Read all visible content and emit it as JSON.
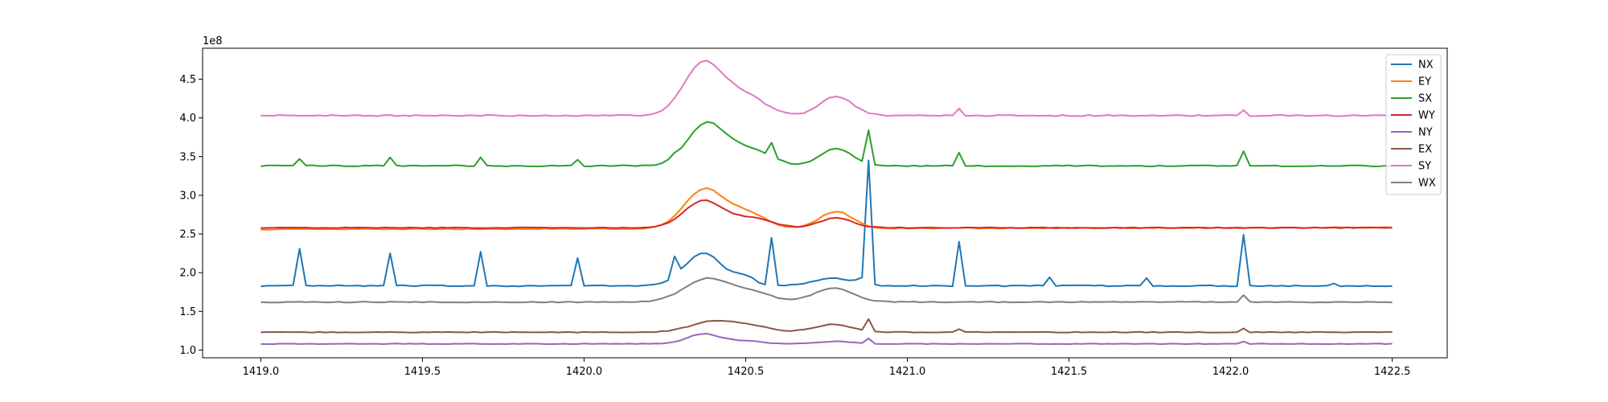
{
  "chart_data": {
    "type": "line",
    "title": "",
    "xlabel": "",
    "ylabel": "",
    "xlim": [
      1418.82,
      1422.67
    ],
    "ylim": [
      0.9,
      4.9
    ],
    "y_offset_text": "1e8",
    "x_ticks": [
      {
        "value": 1419.0,
        "label": "1419.0"
      },
      {
        "value": 1419.5,
        "label": "1419.5"
      },
      {
        "value": 1420.0,
        "label": "1420.0"
      },
      {
        "value": 1420.5,
        "label": "1420.5"
      },
      {
        "value": 1421.0,
        "label": "1421.0"
      },
      {
        "value": 1421.5,
        "label": "1421.5"
      },
      {
        "value": 1422.0,
        "label": "1422.0"
      },
      {
        "value": 1422.5,
        "label": "1422.5"
      }
    ],
    "y_ticks": [
      {
        "value": 1.0,
        "label": "1.0"
      },
      {
        "value": 1.5,
        "label": "1.5"
      },
      {
        "value": 2.0,
        "label": "2.0"
      },
      {
        "value": 2.5,
        "label": "2.5"
      },
      {
        "value": 3.0,
        "label": "3.0"
      },
      {
        "value": 3.5,
        "label": "3.5"
      },
      {
        "value": 4.0,
        "label": "4.0"
      },
      {
        "value": 4.5,
        "label": "4.5"
      }
    ],
    "grid": false,
    "legend_position": "top-right",
    "x_range": [
      1419.0,
      1422.5
    ],
    "x_step": 0.02,
    "series": [
      {
        "name": "NX",
        "color": "#1f77b4",
        "base": 1.83,
        "noise": 0.008,
        "features": [
          {
            "c": 1420.37,
            "a": 0.42,
            "w": 0.06
          },
          {
            "c": 1420.5,
            "a": 0.1,
            "w": 0.03
          },
          {
            "c": 1420.77,
            "a": 0.1,
            "w": 0.06
          },
          {
            "c": 1420.86,
            "a": 0.08,
            "w": 0.015
          }
        ],
        "spikes": [
          {
            "x": 1419.12,
            "h": 2.31
          },
          {
            "x": 1419.4,
            "h": 2.25
          },
          {
            "x": 1419.68,
            "h": 2.27
          },
          {
            "x": 1419.98,
            "h": 2.19
          },
          {
            "x": 1420.28,
            "h": 2.21
          },
          {
            "x": 1420.58,
            "h": 2.45
          },
          {
            "x": 1420.88,
            "h": 3.45
          },
          {
            "x": 1421.16,
            "h": 2.4
          },
          {
            "x": 1421.44,
            "h": 1.94
          },
          {
            "x": 1421.74,
            "h": 1.93
          },
          {
            "x": 1422.04,
            "h": 2.49
          },
          {
            "x": 1422.32,
            "h": 1.86
          }
        ]
      },
      {
        "name": "EY",
        "color": "#ff7f0e",
        "base": 2.56,
        "noise": 0.006,
        "slope": 0.024,
        "features": [
          {
            "c": 1420.37,
            "a": 0.5,
            "w": 0.06
          },
          {
            "c": 1420.5,
            "a": 0.2,
            "w": 0.06
          },
          {
            "c": 1420.78,
            "a": 0.22,
            "w": 0.05
          }
        ],
        "spikes": []
      },
      {
        "name": "SX",
        "color": "#2ca02c",
        "base": 3.38,
        "noise": 0.008,
        "features": [
          {
            "c": 1420.38,
            "a": 0.55,
            "w": 0.06
          },
          {
            "c": 1420.52,
            "a": 0.2,
            "w": 0.06
          },
          {
            "c": 1420.78,
            "a": 0.22,
            "w": 0.05
          }
        ],
        "spikes": [
          {
            "x": 1419.12,
            "h": 3.47
          },
          {
            "x": 1419.4,
            "h": 3.49
          },
          {
            "x": 1419.68,
            "h": 3.49
          },
          {
            "x": 1419.98,
            "h": 3.46
          },
          {
            "x": 1420.28,
            "h": 3.55
          },
          {
            "x": 1420.58,
            "h": 3.68
          },
          {
            "x": 1420.88,
            "h": 3.84
          },
          {
            "x": 1421.16,
            "h": 3.55
          },
          {
            "x": 1422.04,
            "h": 3.57
          }
        ]
      },
      {
        "name": "WY",
        "color": "#d62728",
        "base": 2.58,
        "noise": 0.005,
        "features": [
          {
            "c": 1420.37,
            "a": 0.35,
            "w": 0.06
          },
          {
            "c": 1420.52,
            "a": 0.12,
            "w": 0.06
          },
          {
            "c": 1420.78,
            "a": 0.13,
            "w": 0.05
          }
        ],
        "spikes": []
      },
      {
        "name": "NY",
        "color": "#9467bd",
        "base": 1.08,
        "noise": 0.004,
        "features": [
          {
            "c": 1420.37,
            "a": 0.13,
            "w": 0.05
          },
          {
            "c": 1420.5,
            "a": 0.04,
            "w": 0.05
          },
          {
            "c": 1420.78,
            "a": 0.03,
            "w": 0.05
          }
        ],
        "spikes": [
          {
            "x": 1420.88,
            "h": 1.15
          },
          {
            "x": 1422.04,
            "h": 1.11
          }
        ]
      },
      {
        "name": "EX",
        "color": "#8c564b",
        "base": 1.23,
        "noise": 0.005,
        "features": [
          {
            "c": 1420.4,
            "a": 0.14,
            "w": 0.07
          },
          {
            "c": 1420.52,
            "a": 0.07,
            "w": 0.06
          },
          {
            "c": 1420.77,
            "a": 0.1,
            "w": 0.06
          }
        ],
        "spikes": [
          {
            "x": 1420.88,
            "h": 1.4
          },
          {
            "x": 1421.16,
            "h": 1.27
          },
          {
            "x": 1422.04,
            "h": 1.28
          }
        ]
      },
      {
        "name": "SY",
        "color": "#e377c2",
        "base": 4.03,
        "noise": 0.008,
        "features": [
          {
            "c": 1420.37,
            "a": 0.68,
            "w": 0.06
          },
          {
            "c": 1420.5,
            "a": 0.25,
            "w": 0.06
          },
          {
            "c": 1420.78,
            "a": 0.25,
            "w": 0.05
          }
        ],
        "spikes": [
          {
            "x": 1421.16,
            "h": 4.12
          },
          {
            "x": 1422.04,
            "h": 4.1
          }
        ]
      },
      {
        "name": "WX",
        "color": "#7f7f7f",
        "base": 1.62,
        "noise": 0.006,
        "features": [
          {
            "c": 1420.38,
            "a": 0.3,
            "w": 0.07
          },
          {
            "c": 1420.52,
            "a": 0.12,
            "w": 0.06
          },
          {
            "c": 1420.77,
            "a": 0.18,
            "w": 0.06
          }
        ],
        "spikes": [
          {
            "x": 1422.04,
            "h": 1.71
          }
        ]
      }
    ]
  }
}
